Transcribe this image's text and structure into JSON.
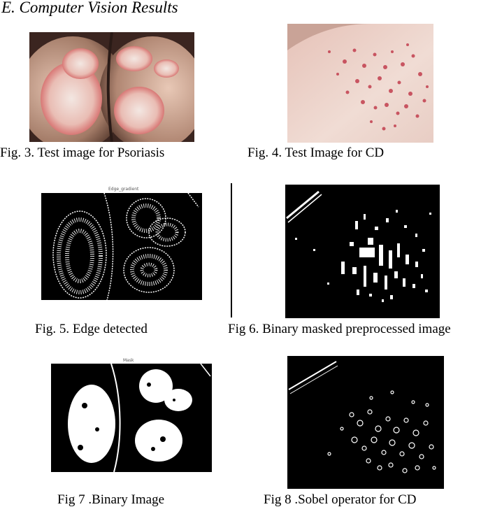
{
  "section": {
    "heading": "E.  Computer Vision Results"
  },
  "figures": [
    {
      "id": "fig3",
      "caption": "Fig. 3. Test image for Psoriasis"
    },
    {
      "id": "fig4",
      "caption": "Fig. 4. Test Image for CD"
    },
    {
      "id": "fig5",
      "caption": "Fig. 5. Edge detected",
      "plot_title": "Edge_gradient"
    },
    {
      "id": "fig6",
      "caption": "Fig 6. Binary masked preprocessed image"
    },
    {
      "id": "fig7",
      "caption": "Fig 7 .Binary Image",
      "plot_title": "Mask"
    },
    {
      "id": "fig8",
      "caption": "Fig 8 .Sobel operator for CD"
    }
  ],
  "colors": {
    "skin_light": "#e6c7b8",
    "skin_dark": "#5a3a2c",
    "lesion_red": "#d86a6a",
    "scale_white": "#f1e6e0",
    "dot_red": "#c03a4a",
    "mask_white": "#ffffff",
    "mask_black": "#000000"
  }
}
